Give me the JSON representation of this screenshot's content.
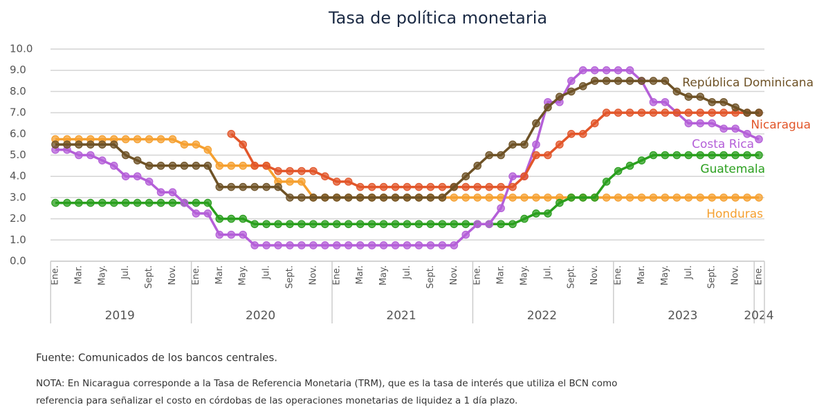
{
  "chart_data": {
    "type": "line",
    "title": "Tasa de política monetaria",
    "source": "Fuente: Comunicados de los bancos centrales.",
    "note_lines": [
      "NOTA: En Nicaragua corresponde a la Tasa de Referencia Monetaria (TRM), que es la tasa de interés que utiliza el BCN como",
      "referencia para señalizar el costo en córdobas de las operaciones monetarias de liquidez a 1 día plazo."
    ],
    "categories": [
      "Ene.",
      null,
      "Mar.",
      null,
      "May.",
      null,
      "Jul.",
      null,
      "Sept.",
      null,
      "Nov.",
      null,
      "Ene.",
      null,
      "Mar.",
      null,
      "May.",
      null,
      "Jul.",
      null,
      "Sept.",
      null,
      "Nov.",
      null,
      "Ene.",
      null,
      "Mar.",
      null,
      "May.",
      null,
      "Jul.",
      null,
      "Sept.",
      null,
      "Nov.",
      null,
      "Ene.",
      null,
      "Mar.",
      null,
      "May.",
      null,
      "Jul.",
      null,
      "Sept.",
      null,
      "Nov.",
      null,
      "Ene.",
      null,
      "Mar.",
      null,
      "May.",
      null,
      "Jul.",
      null,
      "Sept.",
      null,
      "Nov.",
      null,
      "Ene."
    ],
    "years": [
      "2019",
      "2020",
      "2021",
      "2022",
      "2023",
      "2024"
    ],
    "ylim": [
      0,
      10
    ],
    "yticks": [
      {
        "value": 0,
        "label": "0.0"
      },
      {
        "value": 1,
        "label": "1.0"
      },
      {
        "value": 2,
        "label": "2.0"
      },
      {
        "value": 3,
        "label": "3.0"
      },
      {
        "value": 4,
        "label": "4.0"
      },
      {
        "value": 5,
        "label": "5.0"
      },
      {
        "value": 6,
        "label": "6.0"
      },
      {
        "value": 7,
        "label": "7.0"
      },
      {
        "value": 8,
        "label": "8.0"
      },
      {
        "value": 9,
        "label": "9.0"
      },
      {
        "value": 10,
        "label": "10.0"
      }
    ],
    "grid": true,
    "series": [
      {
        "name": "República Dominicana",
        "color": "#6e5226",
        "values": [
          5.5,
          5.5,
          5.5,
          5.5,
          5.5,
          5.5,
          5.0,
          4.75,
          4.5,
          4.5,
          4.5,
          4.5,
          4.5,
          4.5,
          3.5,
          3.5,
          3.5,
          3.5,
          3.5,
          3.5,
          3.0,
          3.0,
          3.0,
          3.0,
          3.0,
          3.0,
          3.0,
          3.0,
          3.0,
          3.0,
          3.0,
          3.0,
          3.0,
          3.0,
          3.5,
          4.0,
          4.5,
          5.0,
          5.0,
          5.5,
          5.5,
          6.5,
          7.25,
          7.75,
          8.0,
          8.25,
          8.5,
          8.5,
          8.5,
          8.5,
          8.5,
          8.5,
          8.5,
          8.0,
          7.75,
          7.75,
          7.5,
          7.5,
          7.25,
          7.0,
          7.0
        ]
      },
      {
        "name": "Nicaragua",
        "color": "#e2562a",
        "values": [
          null,
          null,
          null,
          null,
          null,
          null,
          null,
          null,
          null,
          null,
          null,
          null,
          null,
          null,
          null,
          6.0,
          5.5,
          4.5,
          4.5,
          4.25,
          4.25,
          4.25,
          4.25,
          4.0,
          3.75,
          3.75,
          3.5,
          3.5,
          3.5,
          3.5,
          3.5,
          3.5,
          3.5,
          3.5,
          3.5,
          3.5,
          3.5,
          3.5,
          3.5,
          3.5,
          4.0,
          5.0,
          5.0,
          5.5,
          6.0,
          6.0,
          6.5,
          7.0,
          7.0,
          7.0,
          7.0,
          7.0,
          7.0,
          7.0,
          7.0,
          7.0,
          7.0,
          7.0,
          7.0,
          7.0,
          7.0
        ]
      },
      {
        "name": "Costa Rica",
        "color": "#b45fd8",
        "values": [
          5.25,
          5.25,
          5.0,
          5.0,
          4.75,
          4.5,
          4.0,
          4.0,
          3.75,
          3.25,
          3.25,
          2.75,
          2.25,
          2.25,
          1.25,
          1.25,
          1.25,
          0.75,
          0.75,
          0.75,
          0.75,
          0.75,
          0.75,
          0.75,
          0.75,
          0.75,
          0.75,
          0.75,
          0.75,
          0.75,
          0.75,
          0.75,
          0.75,
          0.75,
          0.75,
          1.25,
          1.75,
          1.75,
          2.5,
          4.0,
          4.0,
          5.5,
          7.5,
          7.5,
          8.5,
          9.0,
          9.0,
          9.0,
          9.0,
          9.0,
          8.5,
          7.5,
          7.5,
          7.0,
          6.5,
          6.5,
          6.5,
          6.25,
          6.25,
          6.0,
          5.75
        ]
      },
      {
        "name": "Guatemala",
        "color": "#2a9f1e",
        "values": [
          2.75,
          2.75,
          2.75,
          2.75,
          2.75,
          2.75,
          2.75,
          2.75,
          2.75,
          2.75,
          2.75,
          2.75,
          2.75,
          2.75,
          2.0,
          2.0,
          2.0,
          1.75,
          1.75,
          1.75,
          1.75,
          1.75,
          1.75,
          1.75,
          1.75,
          1.75,
          1.75,
          1.75,
          1.75,
          1.75,
          1.75,
          1.75,
          1.75,
          1.75,
          1.75,
          1.75,
          1.75,
          1.75,
          1.75,
          1.75,
          2.0,
          2.25,
          2.25,
          2.75,
          3.0,
          3.0,
          3.0,
          3.75,
          4.25,
          4.5,
          4.75,
          5.0,
          5.0,
          5.0,
          5.0,
          5.0,
          5.0,
          5.0,
          5.0,
          5.0,
          5.0
        ]
      },
      {
        "name": "Honduras",
        "color": "#f5a030",
        "values": [
          5.75,
          5.75,
          5.75,
          5.75,
          5.75,
          5.75,
          5.75,
          5.75,
          5.75,
          5.75,
          5.75,
          5.5,
          5.5,
          5.25,
          4.5,
          4.5,
          4.5,
          4.5,
          4.5,
          3.75,
          3.75,
          3.75,
          3.0,
          3.0,
          3.0,
          3.0,
          3.0,
          3.0,
          3.0,
          3.0,
          3.0,
          3.0,
          3.0,
          3.0,
          3.0,
          3.0,
          3.0,
          3.0,
          3.0,
          3.0,
          3.0,
          3.0,
          3.0,
          3.0,
          3.0,
          3.0,
          3.0,
          3.0,
          3.0,
          3.0,
          3.0,
          3.0,
          3.0,
          3.0,
          3.0,
          3.0,
          3.0,
          3.0,
          3.0,
          3.0,
          3.0
        ]
      }
    ]
  }
}
